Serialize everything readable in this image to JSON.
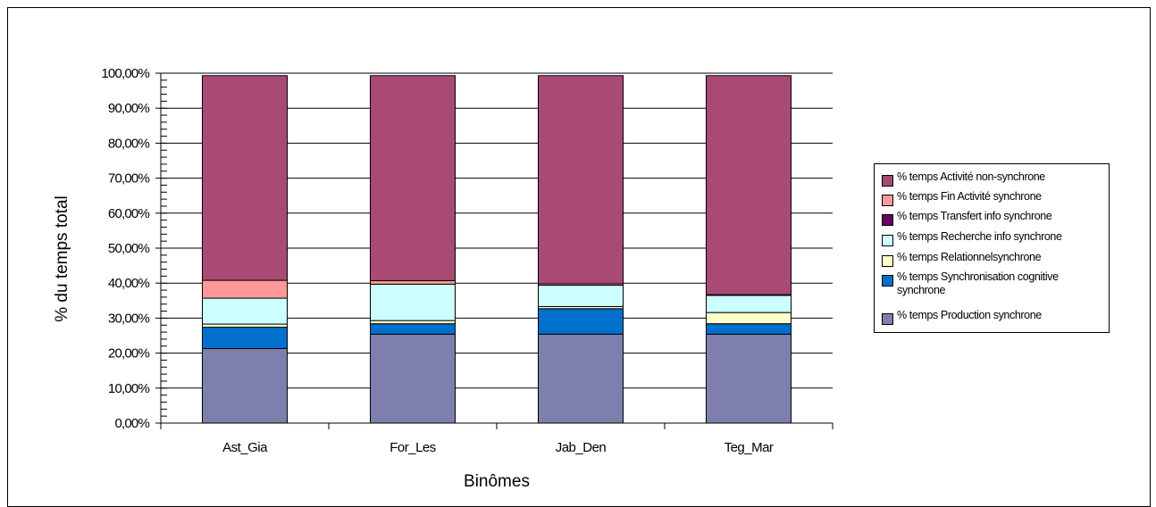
{
  "chart_data": {
    "type": "bar",
    "stacked": true,
    "title": "",
    "xlabel": "Binômes",
    "ylabel": "% du temps total",
    "ylim": [
      0,
      100
    ],
    "yticks": [
      "0,00%",
      "10,00%",
      "20,00%",
      "30,00%",
      "40,00%",
      "50,00%",
      "60,00%",
      "70,00%",
      "80,00%",
      "90,00%",
      "100,00%"
    ],
    "grid": true,
    "legend_position": "right",
    "categories": [
      "Ast_Gia",
      "For_Les",
      "Jab_Den",
      "Teg_Mar"
    ],
    "series": [
      {
        "name": "% temps Production synchrone",
        "color": "#7f7fad",
        "values": [
          21.3,
          25.4,
          25.4,
          25.4
        ]
      },
      {
        "name": "% temps Synchronisation cognitive synchrone",
        "color": "#0070cc",
        "values": [
          6.1,
          3.0,
          7.3,
          3.0
        ]
      },
      {
        "name": "% temps Relationnelsynchrone",
        "color": "#ffffcc",
        "values": [
          0.9,
          0.9,
          0.6,
          3.2
        ]
      },
      {
        "name": "% temps Recherche info synchrone",
        "color": "#ccffff",
        "values": [
          7.4,
          10.4,
          6.1,
          4.9
        ]
      },
      {
        "name": "% temps Transfert info synchrone",
        "color": "#660066",
        "values": [
          0.0,
          0.0,
          0.0,
          0.0
        ]
      },
      {
        "name": "% temps Fin Activité synchrone",
        "color": "#ff9999",
        "values": [
          5.1,
          1.0,
          0.4,
          0.2
        ]
      },
      {
        "name": "% temps Activité non-synchrone",
        "color": "#a94a75",
        "values": [
          58.5,
          58.6,
          59.5,
          62.6
        ]
      }
    ]
  },
  "legend": {
    "items": [
      {
        "label": "% temps Activité non-synchrone",
        "color": "#a94a75"
      },
      {
        "label": "% temps Fin Activité synchrone",
        "color": "#ff9999"
      },
      {
        "label": "% temps Transfert info synchrone",
        "color": "#660066"
      },
      {
        "label": "% temps Recherche info synchrone",
        "color": "#ccffff"
      },
      {
        "label": "% temps Relationnelsynchrone",
        "color": "#ffffcc"
      },
      {
        "label": "% temps Synchronisation cognitive synchrone",
        "color": "#0070cc"
      },
      {
        "label": "% temps Production synchrone",
        "color": "#7f7fad"
      }
    ]
  }
}
